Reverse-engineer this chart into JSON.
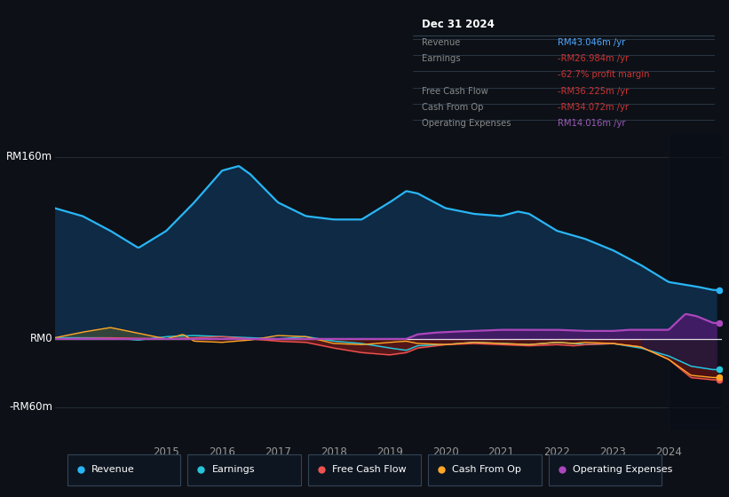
{
  "bg_color": "#0d1117",
  "chart_bg": "#0d1a2a",
  "panel_bg": "#0d1117",
  "title_text": "Dec 31 2024",
  "y_label_top": "RM160m",
  "y_label_mid": "RM0",
  "y_label_bot": "-RM60m",
  "x_labels": [
    "2015",
    "2016",
    "2017",
    "2018",
    "2019",
    "2020",
    "2021",
    "2022",
    "2023",
    "2024"
  ],
  "ylim": [
    -80,
    180
  ],
  "colors": {
    "revenue": "#29b6f6",
    "earnings": "#26c6da",
    "free_cash_flow": "#ef5350",
    "cash_from_op": "#ffa726",
    "operating_expenses": "#ab47bc"
  },
  "revenue_pts_x": [
    2013.0,
    2013.5,
    2014.0,
    2014.5,
    2015.0,
    2015.5,
    2016.0,
    2016.3,
    2016.5,
    2017.0,
    2017.5,
    2018.0,
    2018.5,
    2019.0,
    2019.3,
    2019.5,
    2020.0,
    2020.5,
    2021.0,
    2021.3,
    2021.5,
    2022.0,
    2022.5,
    2023.0,
    2023.5,
    2024.0,
    2024.5,
    2024.8
  ],
  "revenue_pts_y": [
    115,
    108,
    95,
    80,
    95,
    120,
    148,
    152,
    145,
    120,
    108,
    105,
    105,
    120,
    130,
    128,
    115,
    110,
    108,
    112,
    110,
    95,
    88,
    78,
    65,
    50,
    46,
    43
  ],
  "earnings_pts_x": [
    2013,
    2014,
    2014.5,
    2015,
    2015.5,
    2016,
    2017,
    2017.5,
    2018,
    2018.5,
    2019,
    2019.3,
    2019.5,
    2020,
    2020.5,
    2021,
    2021.5,
    2022,
    2022.3,
    2022.5,
    2023,
    2023.5,
    2024.0,
    2024.4,
    2024.8
  ],
  "earnings_pts_y": [
    1,
    1,
    -1,
    2,
    3,
    2,
    0,
    2,
    -2,
    -4,
    -8,
    -10,
    -6,
    -5,
    -3,
    -4,
    -5,
    -3,
    -4,
    -5,
    -4,
    -8,
    -15,
    -24,
    -27
  ],
  "fcf_pts_x": [
    2013,
    2014,
    2015,
    2015.5,
    2016,
    2017,
    2017.5,
    2018,
    2018.5,
    2019,
    2019.3,
    2019.5,
    2020,
    2020.5,
    2021,
    2021.5,
    2022,
    2022.3,
    2022.5,
    2023,
    2023.5,
    2024.0,
    2024.4,
    2024.8
  ],
  "fcf_pts_y": [
    0,
    1,
    0,
    1,
    2,
    -2,
    -3,
    -8,
    -12,
    -14,
    -12,
    -8,
    -5,
    -4,
    -5,
    -6,
    -5,
    -6,
    -5,
    -4,
    -7,
    -18,
    -34,
    -36
  ],
  "cashop_pts_x": [
    2013,
    2013.5,
    2014,
    2014.3,
    2014.7,
    2015,
    2015.3,
    2015.5,
    2016,
    2016.5,
    2017,
    2017.5,
    2018,
    2018.5,
    2019,
    2019.3,
    2019.5,
    2020,
    2020.5,
    2021,
    2021.5,
    2022,
    2022.3,
    2022.5,
    2023,
    2023.5,
    2024.0,
    2024.4,
    2024.8
  ],
  "cashop_pts_y": [
    1,
    6,
    10,
    7,
    3,
    0,
    4,
    -2,
    -3,
    -1,
    3,
    2,
    -4,
    -5,
    -3,
    -2,
    -4,
    -5,
    -3,
    -4,
    -5,
    -3,
    -4,
    -3,
    -4,
    -7,
    -18,
    -32,
    -34
  ],
  "opex_pts_x": [
    2013,
    2019.3,
    2019.5,
    2019.8,
    2020,
    2020.2,
    2020.5,
    2021,
    2021.5,
    2022,
    2022.5,
    2023,
    2023.3,
    2023.5,
    2024.0,
    2024.3,
    2024.5,
    2024.8
  ],
  "opex_pts_y": [
    0,
    0,
    4,
    5.5,
    6,
    6.5,
    7,
    8,
    8,
    8,
    7,
    7,
    8,
    8,
    8,
    22,
    20,
    14
  ],
  "legend": [
    {
      "label": "Revenue",
      "color": "#29b6f6"
    },
    {
      "label": "Earnings",
      "color": "#26c6da"
    },
    {
      "label": "Free Cash Flow",
      "color": "#ef5350"
    },
    {
      "label": "Cash From Op",
      "color": "#ffa726"
    },
    {
      "label": "Operating Expenses",
      "color": "#ab47bc"
    }
  ],
  "info_rows": [
    {
      "label": "Revenue",
      "value": "RM43.046m /yr",
      "label_color": "#888888",
      "value_color": "#4da6ff"
    },
    {
      "label": "Earnings",
      "value": "-RM26.984m /yr",
      "label_color": "#888888",
      "value_color": "#cc3333"
    },
    {
      "label": "",
      "value": "-62.7% profit margin",
      "label_color": "#888888",
      "value_color": "#cc3333"
    },
    {
      "label": "Free Cash Flow",
      "value": "-RM36.225m /yr",
      "label_color": "#888888",
      "value_color": "#cc3333"
    },
    {
      "label": "Cash From Op",
      "value": "-RM34.072m /yr",
      "label_color": "#888888",
      "value_color": "#cc3333"
    },
    {
      "label": "Operating Expenses",
      "value": "RM14.016m /yr",
      "label_color": "#888888",
      "value_color": "#9b59b6"
    }
  ]
}
